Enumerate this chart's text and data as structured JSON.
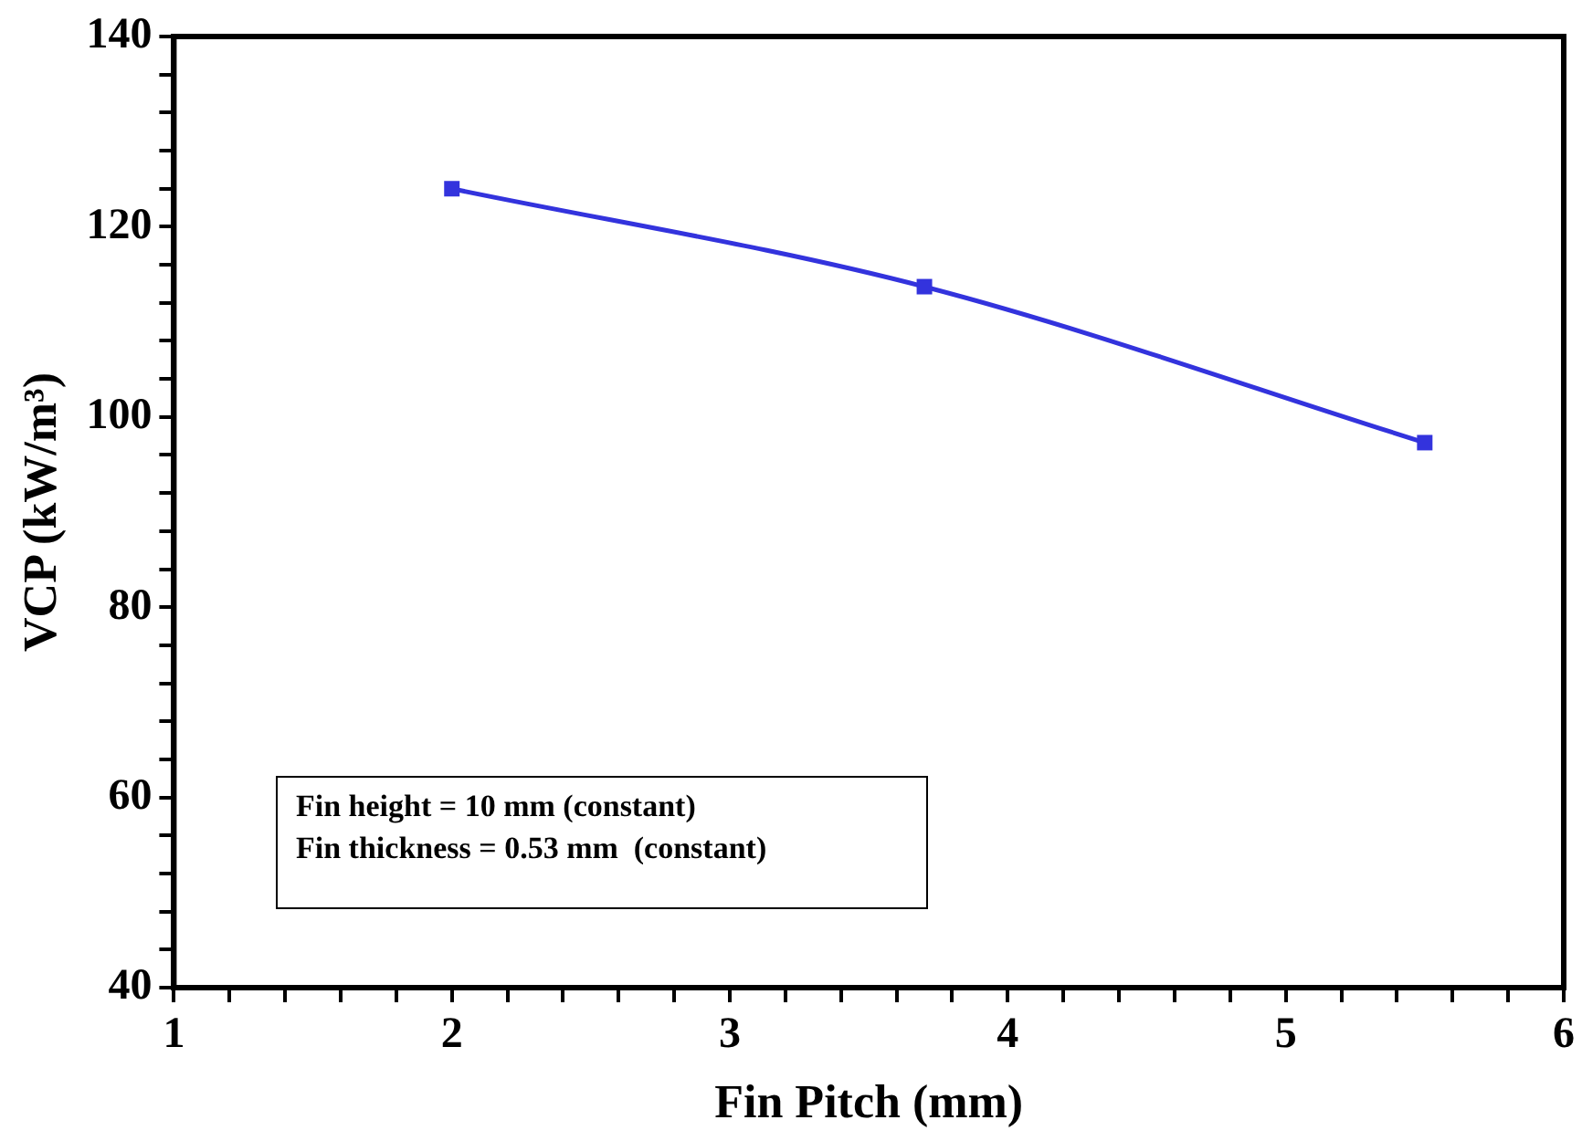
{
  "chart_data": {
    "type": "line",
    "xlabel": "Fin Pitch (mm)",
    "ylabel": "VCP (kW/m³)",
    "x": [
      2,
      3.7,
      5.5
    ],
    "series": [
      {
        "color": "#3333dd",
        "values": [
          124,
          113.7,
          97.3
        ]
      }
    ],
    "xlim": [
      1,
      6
    ],
    "ylim": [
      40,
      140
    ],
    "xticks": [
      1,
      {
        "value": 1.2,
        "label": null
      },
      {
        "value": 1.4,
        "label": null
      },
      {
        "value": 1.6,
        "label": null
      },
      {
        "value": 1.8,
        "label": null
      },
      2,
      {
        "value": 2.2,
        "label": null
      },
      {
        "value": 2.4,
        "label": null
      },
      {
        "value": 2.6,
        "label": null
      },
      {
        "value": 2.8,
        "label": null
      },
      3,
      {
        "value": 3.2,
        "label": null
      },
      {
        "value": 3.4,
        "label": null
      },
      {
        "value": 3.6,
        "label": null
      },
      {
        "value": 3.8,
        "label": null
      },
      4,
      {
        "value": 4.2,
        "label": null
      },
      {
        "value": 4.4,
        "label": null
      },
      {
        "value": 4.6,
        "label": null
      },
      {
        "value": 4.8,
        "label": null
      },
      5,
      {
        "value": 5.2,
        "label": null
      },
      {
        "value": 5.4,
        "label": null
      },
      {
        "value": 5.6,
        "label": null
      },
      {
        "value": 5.8,
        "label": null
      },
      6
    ],
    "yticks": [
      40,
      {
        "value": 44,
        "label": null
      },
      {
        "value": 48,
        "label": null
      },
      {
        "value": 52,
        "label": null
      },
      {
        "value": 56,
        "label": null
      },
      60,
      {
        "value": 64,
        "label": null
      },
      {
        "value": 68,
        "label": null
      },
      {
        "value": 72,
        "label": null
      },
      {
        "value": 76,
        "label": null
      },
      80,
      {
        "value": 84,
        "label": null
      },
      {
        "value": 88,
        "label": null
      },
      {
        "value": 92,
        "label": null
      },
      {
        "value": 96,
        "label": null
      },
      100,
      {
        "value": 104,
        "label": null
      },
      {
        "value": 108,
        "label": null
      },
      {
        "value": 112,
        "label": null
      },
      {
        "value": 116,
        "label": null
      },
      120,
      {
        "value": 124,
        "label": null
      },
      {
        "value": 128,
        "label": null
      },
      {
        "value": 132,
        "label": null
      },
      {
        "value": 136,
        "label": null
      },
      140
    ],
    "annotations": [
      "Fin height = 10 mm (constant)\nFin thickness = 0.53 mm  (constant)"
    ],
    "grid": false,
    "legend": false,
    "marker": "square",
    "line_style": "solid"
  }
}
